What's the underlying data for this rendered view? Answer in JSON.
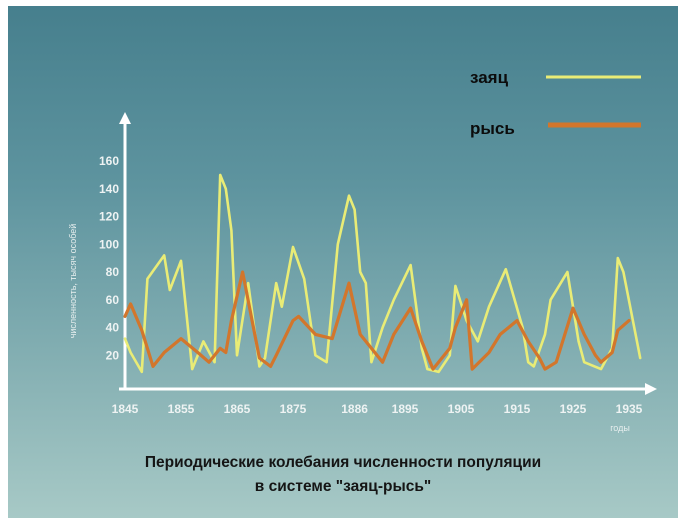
{
  "chart_data": {
    "type": "line",
    "title_line1": "Периодические колебания численности популяции",
    "title_line2": "в системе \"заяц-рысь\"",
    "ylabel": "численность, тысяч особей",
    "xlabel": "годы",
    "ylim": [
      0,
      180
    ],
    "xlim": [
      1844,
      1937
    ],
    "yticks": [
      20,
      40,
      60,
      80,
      100,
      120,
      140,
      160
    ],
    "xticks": [
      1845,
      1855,
      1865,
      1875,
      1886,
      1895,
      1905,
      1915,
      1925,
      1935
    ],
    "grid": false,
    "legend_position": "top-right",
    "series": [
      {
        "name": "заяц",
        "color": "#e9ec76",
        "points": [
          [
            1845,
            32
          ],
          [
            1846,
            22
          ],
          [
            1848,
            8
          ],
          [
            1849,
            75
          ],
          [
            1852,
            92
          ],
          [
            1853,
            67
          ],
          [
            1855,
            88
          ],
          [
            1857,
            10
          ],
          [
            1859,
            30
          ],
          [
            1861,
            15
          ],
          [
            1862,
            150
          ],
          [
            1863,
            140
          ],
          [
            1864,
            110
          ],
          [
            1865,
            20
          ],
          [
            1867,
            72
          ],
          [
            1869,
            12
          ],
          [
            1870,
            18
          ],
          [
            1872,
            72
          ],
          [
            1873,
            55
          ],
          [
            1875,
            98
          ],
          [
            1877,
            75
          ],
          [
            1879,
            20
          ],
          [
            1881,
            15
          ],
          [
            1883,
            100
          ],
          [
            1885,
            135
          ],
          [
            1886,
            125
          ],
          [
            1887,
            80
          ],
          [
            1888,
            72
          ],
          [
            1889,
            15
          ],
          [
            1891,
            40
          ],
          [
            1893,
            60
          ],
          [
            1896,
            85
          ],
          [
            1898,
            25
          ],
          [
            1899,
            10
          ],
          [
            1901,
            8
          ],
          [
            1903,
            20
          ],
          [
            1904,
            70
          ],
          [
            1906,
            45
          ],
          [
            1908,
            30
          ],
          [
            1910,
            55
          ],
          [
            1913,
            82
          ],
          [
            1916,
            40
          ],
          [
            1917,
            15
          ],
          [
            1918,
            12
          ],
          [
            1920,
            35
          ],
          [
            1921,
            60
          ],
          [
            1924,
            80
          ],
          [
            1926,
            30
          ],
          [
            1927,
            15
          ],
          [
            1930,
            10
          ],
          [
            1932,
            25
          ],
          [
            1933,
            90
          ],
          [
            1934,
            80
          ],
          [
            1937,
            18
          ]
        ]
      },
      {
        "name": "рысь",
        "color": "#d2762c",
        "points": [
          [
            1845,
            48
          ],
          [
            1846,
            57
          ],
          [
            1848,
            38
          ],
          [
            1850,
            12
          ],
          [
            1852,
            22
          ],
          [
            1855,
            32
          ],
          [
            1858,
            22
          ],
          [
            1860,
            15
          ],
          [
            1862,
            25
          ],
          [
            1863,
            22
          ],
          [
            1864,
            45
          ],
          [
            1866,
            80
          ],
          [
            1869,
            18
          ],
          [
            1871,
            12
          ],
          [
            1872,
            20
          ],
          [
            1875,
            45
          ],
          [
            1876,
            48
          ],
          [
            1879,
            35
          ],
          [
            1882,
            32
          ],
          [
            1885,
            72
          ],
          [
            1887,
            35
          ],
          [
            1889,
            25
          ],
          [
            1891,
            15
          ],
          [
            1893,
            35
          ],
          [
            1896,
            54
          ],
          [
            1898,
            30
          ],
          [
            1900,
            10
          ],
          [
            1903,
            25
          ],
          [
            1904,
            40
          ],
          [
            1906,
            60
          ],
          [
            1907,
            10
          ],
          [
            1910,
            22
          ],
          [
            1912,
            35
          ],
          [
            1915,
            45
          ],
          [
            1917,
            30
          ],
          [
            1919,
            18
          ],
          [
            1920,
            10
          ],
          [
            1922,
            15
          ],
          [
            1925,
            54
          ],
          [
            1927,
            35
          ],
          [
            1929,
            20
          ],
          [
            1930,
            15
          ],
          [
            1932,
            22
          ],
          [
            1933,
            38
          ],
          [
            1935,
            45
          ]
        ]
      }
    ]
  }
}
